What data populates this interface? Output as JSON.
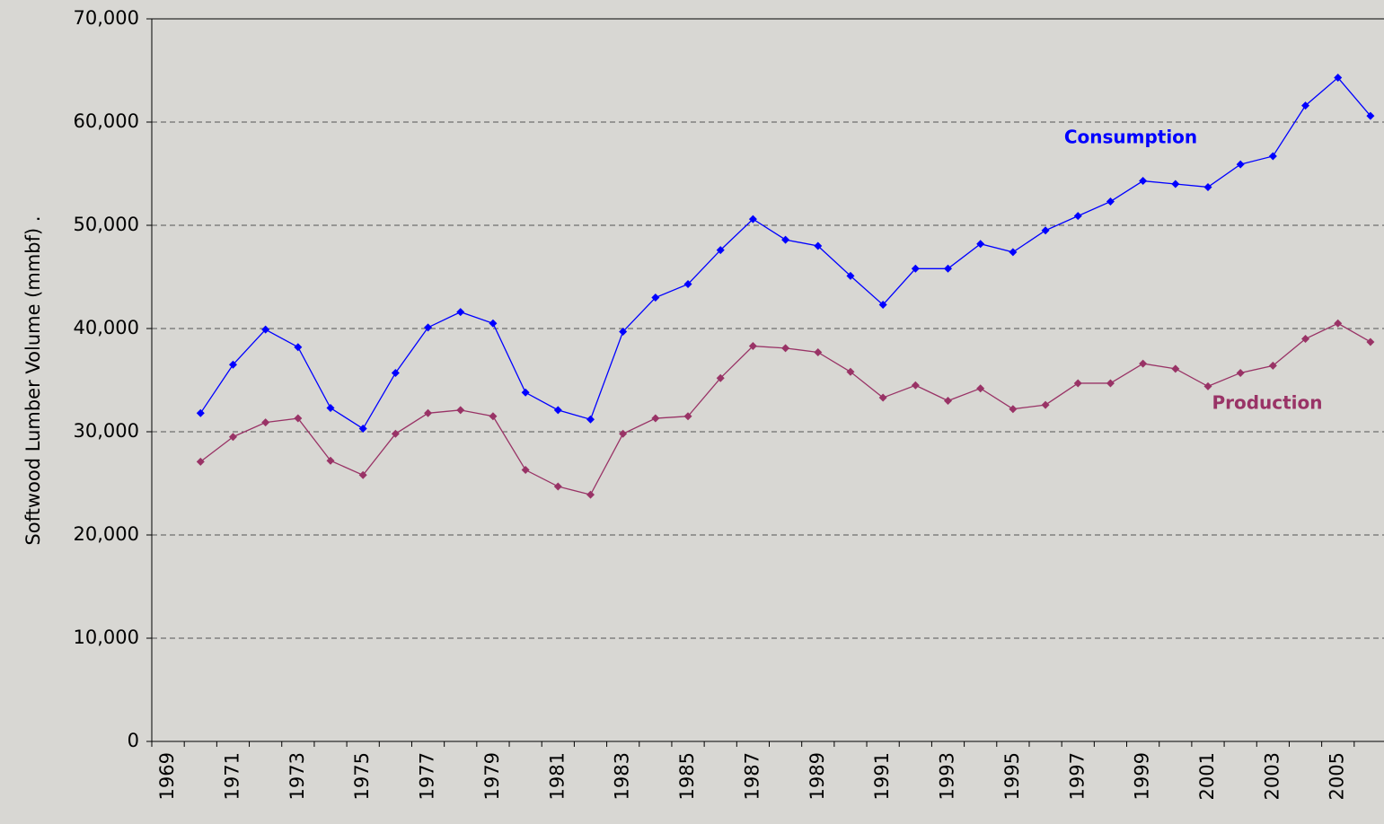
{
  "chart_data": {
    "type": "line",
    "y_label": "Softwood Lumber Volume (mmbf) .",
    "categories": [
      "1969",
      null,
      "1971",
      null,
      "1973",
      null,
      "1975",
      null,
      "1977",
      null,
      "1979",
      null,
      "1981",
      null,
      "1983",
      null,
      "1985",
      null,
      "1987",
      null,
      "1989",
      null,
      "1991",
      null,
      "1993",
      null,
      "1995",
      null,
      "1997",
      null,
      "1999",
      null,
      "2001",
      null,
      "2003",
      null,
      "2005",
      null
    ],
    "series": [
      {
        "name": "Consumption",
        "color": "#0000ff",
        "values": [
          null,
          31800,
          36500,
          39900,
          38200,
          32300,
          30300,
          35700,
          40100,
          41600,
          40500,
          33800,
          32100,
          31200,
          39700,
          43000,
          44300,
          47600,
          50600,
          48600,
          48000,
          45100,
          42300,
          45800,
          45800,
          48200,
          47400,
          49500,
          50900,
          52300,
          54300,
          54000,
          53700,
          55900,
          56700,
          61600,
          64300,
          60600
        ]
      },
      {
        "name": "Production",
        "color": "#993366",
        "values": [
          null,
          27100,
          29500,
          30900,
          31300,
          27200,
          25800,
          29800,
          31800,
          32100,
          31500,
          26300,
          24700,
          23900,
          29800,
          31300,
          31500,
          35200,
          38300,
          38100,
          37700,
          35800,
          33300,
          34500,
          33000,
          34200,
          32200,
          32600,
          34700,
          34700,
          36600,
          36100,
          34400,
          35700,
          36400,
          39000,
          40500,
          38700
        ]
      }
    ],
    "ylim": [
      0,
      70000
    ],
    "yticks": [
      0,
      {
        "value": 10000,
        "label": "10,000"
      },
      {
        "value": 20000,
        "label": "20,000"
      },
      {
        "value": 30000,
        "label": "30,000"
      },
      {
        "value": 40000,
        "label": "40,000"
      },
      {
        "value": 50000,
        "label": "50,000"
      },
      {
        "value": 60000,
        "label": "60,000"
      },
      {
        "value": 70000,
        "label": "70,000"
      }
    ],
    "grid": true
  }
}
